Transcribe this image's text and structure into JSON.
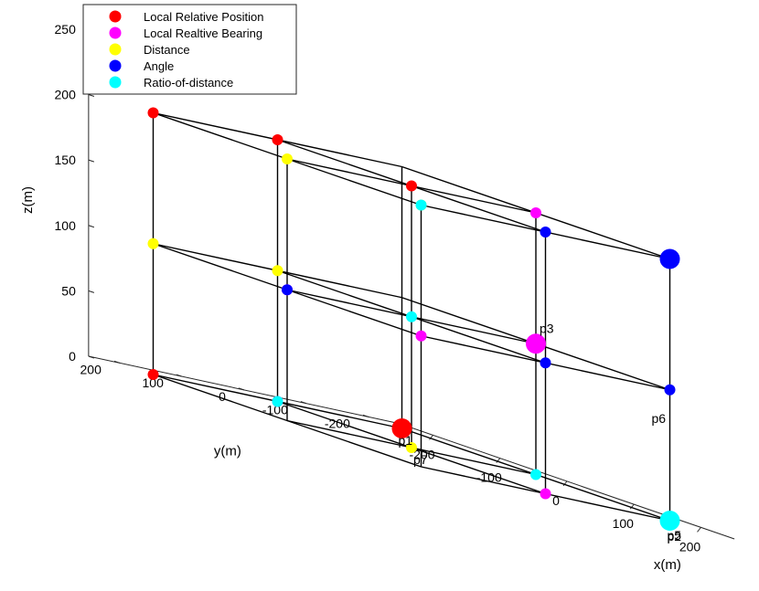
{
  "chart_data": {
    "type": "scatter",
    "dimension": "3d",
    "xlabel": "x(m)",
    "ylabel": "y(m)",
    "zlabel": "z(m)",
    "xticks": [
      "-200",
      "-100",
      "0",
      "100",
      "200"
    ],
    "yticks": [
      "-200",
      "-100",
      "0",
      "100",
      "200"
    ],
    "zticks": [
      "0",
      "50",
      "100",
      "150",
      "200",
      "250"
    ],
    "xlim": [
      -250,
      250
    ],
    "ylim": [
      -250,
      250
    ],
    "zlim": [
      0,
      250
    ],
    "grid_lines": "3x3x3 lattice at x,y in {-200,0,200}, z in {0,100,200}",
    "legend_position": "top-left",
    "series": [
      {
        "name": "Local Relative Position",
        "color": "#ff0000",
        "points": [
          {
            "x": -200,
            "y": -200,
            "z": 0,
            "large": true,
            "label": "p1"
          },
          {
            "x": 200,
            "y": -200,
            "z": 0
          },
          {
            "x": -200,
            "y": 200,
            "z": 0
          },
          {
            "x": -200,
            "y": 200,
            "z": 200
          },
          {
            "x": -200,
            "y": 0,
            "z": 200
          },
          {
            "x": 0,
            "y": 0,
            "z": 200
          }
        ]
      },
      {
        "name": "Local Realtive Bearing",
        "color": "#ff00ff",
        "points": [
          {
            "x": -200,
            "y": 0,
            "z": 0
          },
          {
            "x": 200,
            "y": 0,
            "z": 0
          },
          {
            "x": 0,
            "y": 200,
            "z": 100
          },
          {
            "x": 0,
            "y": -200,
            "z": 200
          },
          {
            "x": 200,
            "y": 200,
            "z": 100
          },
          {
            "x": 0,
            "y": -200,
            "z": 100,
            "large": true,
            "label": "p3"
          }
        ]
      },
      {
        "name": "Distance",
        "color": "#ffff00",
        "points": [
          {
            "x": 0,
            "y": 0,
            "z": 0,
            "label": "p7"
          },
          {
            "x": -200,
            "y": 200,
            "z": 100
          },
          {
            "x": 200,
            "y": 200,
            "z": 200
          },
          {
            "x": 0,
            "y": 200,
            "z": 200
          },
          {
            "x": -200,
            "y": 0,
            "z": 100
          }
        ]
      },
      {
        "name": "Angle",
        "color": "#0000ff",
        "points": [
          {
            "x": 200,
            "y": 0,
            "z": 200
          },
          {
            "x": 200,
            "y": 0,
            "z": 100
          },
          {
            "x": 0,
            "y": 200,
            "z": 100
          },
          {
            "x": 200,
            "y": -200,
            "z": 200,
            "large": true
          },
          {
            "x": 200,
            "y": -200,
            "z": 100,
            "label": "p6"
          }
        ]
      },
      {
        "name": "Ratio-of-distance",
        "color": "#00ffff",
        "points": [
          {
            "x": -200,
            "y": 0,
            "z": 0
          },
          {
            "x": 0,
            "y": -200,
            "z": 0
          },
          {
            "x": 0,
            "y": 0,
            "z": 100
          },
          {
            "x": 200,
            "y": 200,
            "z": 200
          },
          {
            "x": 200,
            "y": -200,
            "z": 0,
            "large": true,
            "label": "p2"
          }
        ]
      }
    ],
    "annotations": [
      {
        "text": "p5",
        "x": 200,
        "y": -200,
        "z": 0
      }
    ]
  }
}
